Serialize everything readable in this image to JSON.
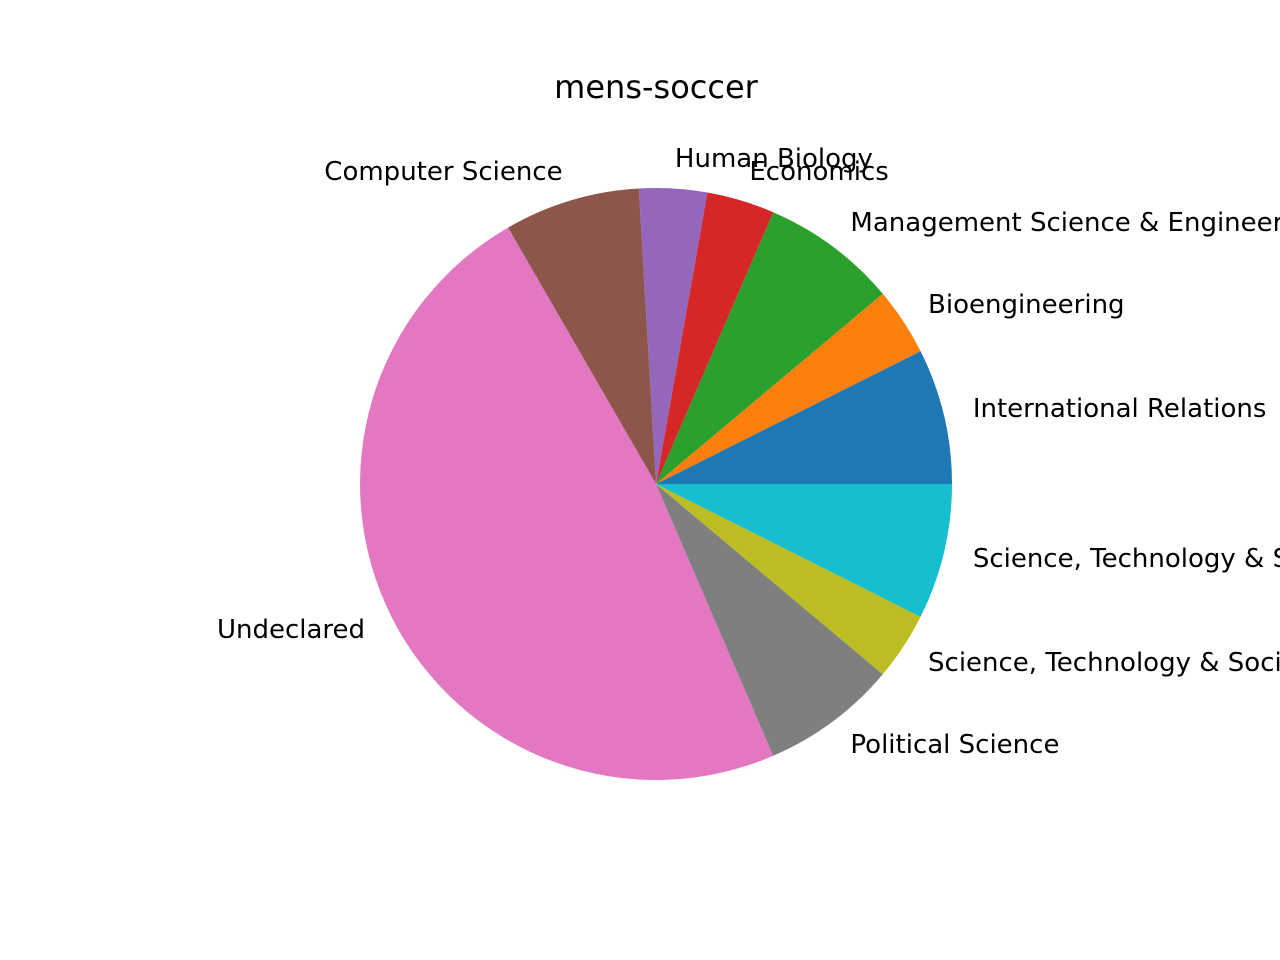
{
  "chart_data": {
    "type": "pie",
    "title": "mens-soccer",
    "start_angle": "0 (3 o'clock)",
    "direction": "counterclockwise",
    "slices": [
      {
        "label": "International Relations",
        "value": 2,
        "color": "#1f77b4"
      },
      {
        "label": "Bioengineering",
        "value": 1,
        "color": "#ff7f0e"
      },
      {
        "label": "Management Science & Engineering",
        "value": 2,
        "color": "#2ca02c"
      },
      {
        "label": "Economics",
        "value": 1,
        "color": "#d62728"
      },
      {
        "label": "Human Biology",
        "value": 1,
        "color": "#9467bd"
      },
      {
        "label": "Computer Science",
        "value": 2,
        "color": "#8c564b"
      },
      {
        "label": "Undeclared",
        "value": 13,
        "color": "#e377c2"
      },
      {
        "label": "Political Science",
        "value": 2,
        "color": "#7f7f7f"
      },
      {
        "label": "Science, Technology & Society",
        "value": 1,
        "color": "#bcbd22"
      },
      {
        "label": "Science, Technology & Society",
        "value": 2,
        "color": "#17becf"
      }
    ]
  }
}
